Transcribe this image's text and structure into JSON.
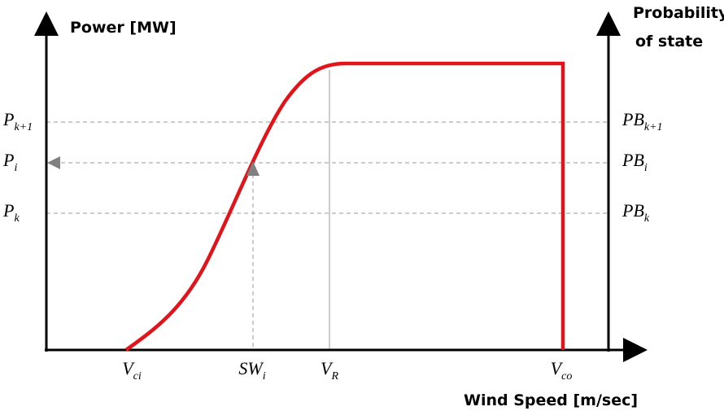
{
  "axes": {
    "y_left": "Power [MW]",
    "y_right": [
      "Probability",
      "of state"
    ],
    "x": "Wind Speed [m/sec]"
  },
  "left_labels": [
    {
      "main": "P",
      "sub": "k+1"
    },
    {
      "main": "P",
      "sub": "i"
    },
    {
      "main": "P",
      "sub": "k"
    }
  ],
  "right_labels": [
    {
      "main": "PB",
      "sub": "k+1"
    },
    {
      "main": "PB",
      "sub": "i"
    },
    {
      "main": "PB",
      "sub": "k"
    }
  ],
  "x_labels": [
    {
      "main": "V",
      "sub": "ci"
    },
    {
      "main": "SW",
      "sub": "i"
    },
    {
      "main": "V",
      "sub": "R"
    },
    {
      "main": "V",
      "sub": "co"
    }
  ]
}
